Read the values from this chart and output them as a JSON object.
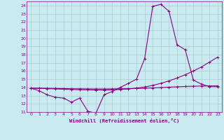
{
  "xlabel": "Windchill (Refroidissement éolien,°C)",
  "bg_color": "#c8eaf0",
  "line_color": "#880088",
  "grid_color": "#aacccc",
  "xlim": [
    -0.5,
    23.5
  ],
  "ylim": [
    11,
    24.5
  ],
  "xticks": [
    0,
    1,
    2,
    3,
    4,
    5,
    6,
    7,
    8,
    9,
    10,
    11,
    12,
    13,
    14,
    15,
    16,
    17,
    18,
    19,
    20,
    21,
    22,
    23
  ],
  "yticks": [
    11,
    12,
    13,
    14,
    15,
    16,
    17,
    18,
    19,
    20,
    21,
    22,
    23,
    24
  ],
  "series1_x": [
    0,
    1,
    2,
    3,
    4,
    5,
    6,
    7,
    8,
    9,
    10,
    11,
    12,
    13,
    14,
    15,
    16,
    17,
    18,
    19,
    20,
    21,
    22,
    23
  ],
  "series1_y": [
    13.9,
    13.6,
    13.1,
    12.8,
    12.7,
    12.2,
    12.7,
    11.1,
    10.85,
    13.1,
    13.5,
    14.0,
    14.5,
    15.0,
    17.5,
    23.9,
    24.15,
    23.3,
    19.2,
    18.6,
    14.9,
    14.4,
    14.1,
    14.1
  ],
  "series2_x": [
    0,
    1,
    2,
    3,
    4,
    5,
    6,
    7,
    8,
    9,
    10,
    11,
    12,
    13,
    14,
    15,
    16,
    17,
    18,
    19,
    20,
    21,
    22,
    23
  ],
  "series2_y": [
    13.9,
    13.9,
    13.85,
    13.82,
    13.78,
    13.75,
    13.72,
    13.7,
    13.68,
    13.68,
    13.7,
    13.75,
    13.82,
    13.92,
    14.05,
    14.25,
    14.5,
    14.8,
    15.15,
    15.55,
    16.0,
    16.5,
    17.1,
    17.7
  ],
  "series3_x": [
    0,
    1,
    2,
    3,
    4,
    5,
    6,
    7,
    8,
    9,
    10,
    11,
    12,
    13,
    14,
    15,
    16,
    17,
    18,
    19,
    20,
    21,
    22,
    23
  ],
  "series3_y": [
    13.9,
    13.9,
    13.9,
    13.88,
    13.86,
    13.84,
    13.83,
    13.82,
    13.81,
    13.81,
    13.82,
    13.83,
    13.85,
    13.87,
    13.9,
    13.94,
    13.98,
    14.03,
    14.08,
    14.12,
    14.15,
    14.17,
    14.18,
    14.19
  ]
}
